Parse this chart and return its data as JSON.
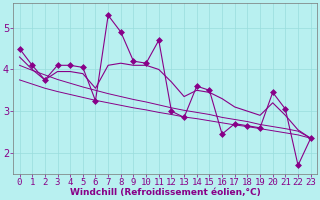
{
  "xlabel": "Windchill (Refroidissement éolien,°C)",
  "x_values": [
    0,
    1,
    2,
    3,
    4,
    5,
    6,
    7,
    8,
    9,
    10,
    11,
    12,
    13,
    14,
    15,
    16,
    17,
    18,
    19,
    20,
    21,
    22,
    23
  ],
  "main_line": [
    4.5,
    4.1,
    3.75,
    4.1,
    4.1,
    4.05,
    3.25,
    5.3,
    4.9,
    4.2,
    4.15,
    4.7,
    3.0,
    2.85,
    3.6,
    3.5,
    2.45,
    2.7,
    2.65,
    2.6,
    3.45,
    3.05,
    1.7,
    2.35
  ],
  "smooth_line1": [
    4.3,
    4.0,
    3.75,
    3.95,
    3.95,
    3.9,
    3.55,
    4.1,
    4.15,
    4.1,
    4.1,
    4.0,
    3.7,
    3.35,
    3.5,
    3.45,
    3.3,
    3.1,
    3.0,
    2.9,
    3.2,
    2.9,
    2.55,
    2.35
  ],
  "trend_line1": [
    4.1,
    3.98,
    3.87,
    3.76,
    3.67,
    3.58,
    3.5,
    3.42,
    3.35,
    3.28,
    3.22,
    3.15,
    3.08,
    3.02,
    2.97,
    2.92,
    2.85,
    2.8,
    2.75,
    2.68,
    2.63,
    2.58,
    2.52,
    2.35
  ],
  "trend_line2": [
    3.75,
    3.65,
    3.55,
    3.47,
    3.4,
    3.33,
    3.26,
    3.2,
    3.14,
    3.08,
    3.03,
    2.97,
    2.92,
    2.86,
    2.82,
    2.77,
    2.72,
    2.67,
    2.63,
    2.58,
    2.53,
    2.48,
    2.43,
    2.35
  ],
  "line_color": "#880088",
  "bg_color": "#b8f0f0",
  "grid_color": "#99dddd",
  "ylim": [
    1.5,
    5.6
  ],
  "xlim": [
    -0.5,
    23.5
  ],
  "yticks": [
    2,
    3,
    4,
    5
  ],
  "xticks": [
    0,
    1,
    2,
    3,
    4,
    5,
    6,
    7,
    8,
    9,
    10,
    11,
    12,
    13,
    14,
    15,
    16,
    17,
    18,
    19,
    20,
    21,
    22,
    23
  ],
  "marker_size": 3,
  "xlabel_fontsize": 6.5,
  "tick_fontsize": 6.5,
  "ytick_fontsize": 7
}
